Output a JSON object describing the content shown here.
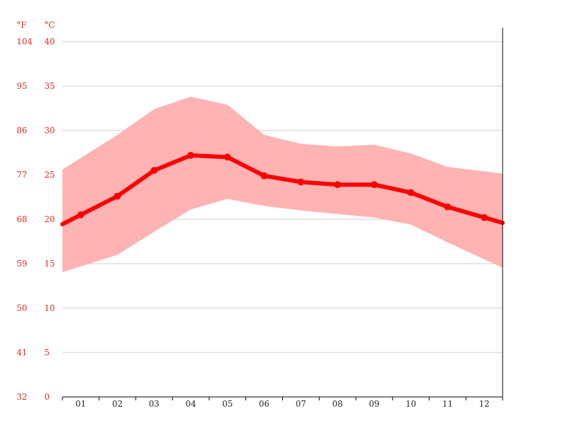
{
  "chart_data": {
    "type": "line",
    "title": "",
    "xlabel": "",
    "ylabel": "",
    "unit_f": "°F",
    "unit_c": "°C",
    "categories": [
      "01",
      "02",
      "03",
      "04",
      "05",
      "06",
      "07",
      "08",
      "09",
      "10",
      "11",
      "12"
    ],
    "ylim_c": [
      0,
      40
    ],
    "yticks_c": [
      "0",
      "5",
      "10",
      "15",
      "20",
      "25",
      "30",
      "35",
      "40"
    ],
    "yticks_f": [
      "32",
      "41",
      "50",
      "59",
      "68",
      "77",
      "86",
      "95",
      "104"
    ],
    "grid": true,
    "series": [
      {
        "role": "mean",
        "values": [
          20.5,
          22.6,
          25.5,
          27.2,
          27.0,
          24.9,
          24.2,
          23.9,
          23.9,
          23.0,
          21.4,
          20.2
        ]
      },
      {
        "role": "max",
        "values": [
          26.9,
          29.5,
          32.4,
          33.8,
          32.9,
          29.5,
          28.5,
          28.2,
          28.4,
          27.4,
          25.9,
          25.4
        ]
      },
      {
        "role": "min",
        "values": [
          14.7,
          16.0,
          18.6,
          21.1,
          22.3,
          21.5,
          21.0,
          20.6,
          20.2,
          19.4,
          17.4,
          15.5
        ]
      }
    ],
    "colors": {
      "mean_line": "#ff0000",
      "range_band": "#ffb3b3",
      "tick_text": "#e8231f"
    }
  }
}
